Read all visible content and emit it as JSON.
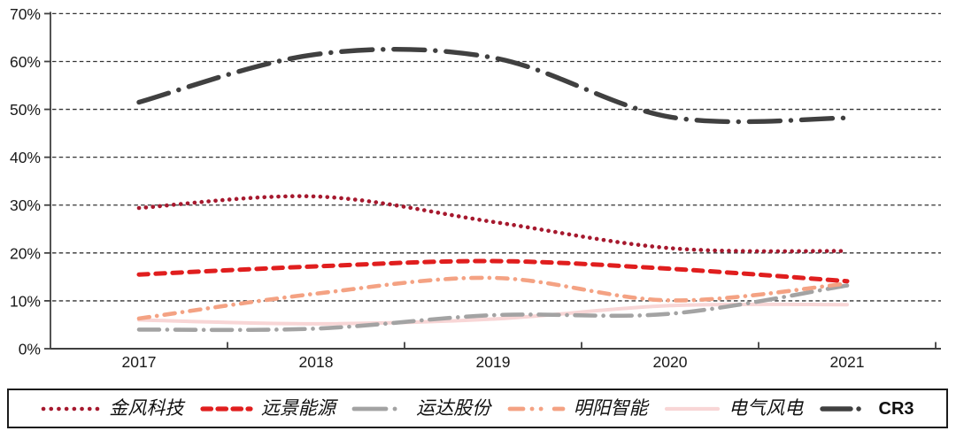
{
  "chart_data": {
    "type": "line",
    "title": "",
    "categories": [
      "2017",
      "2018",
      "2019",
      "2020",
      "2021"
    ],
    "y_axis": {
      "ticks": [
        {
          "label": "0%",
          "value": 0
        },
        {
          "label": "10%",
          "value": 10
        },
        {
          "label": "20%",
          "value": 20
        },
        {
          "label": "30%",
          "value": 30
        },
        {
          "label": "40%",
          "value": 40
        },
        {
          "label": "50%",
          "value": 50
        },
        {
          "label": "60%",
          "value": 60
        },
        {
          "label": "70%",
          "value": 70
        }
      ]
    },
    "ylim": [
      0,
      70
    ],
    "grid": "horizontal-dashed",
    "legend_position": "bottom",
    "series": [
      {
        "key": "goldwind",
        "name": "金风科技",
        "style": "dotted",
        "color": "#A6192E",
        "values": [
          29.4,
          31.8,
          26.5,
          21.0,
          20.4
        ]
      },
      {
        "key": "envision",
        "name": "远景能源",
        "style": "dashed",
        "color": "#E01E1E",
        "values": [
          15.5,
          17.2,
          18.3,
          16.7,
          14.1
        ]
      },
      {
        "key": "windey",
        "name": "运达股份",
        "style": "long-dash-dot",
        "color": "#A3A3A3",
        "values": [
          4.0,
          4.2,
          7.0,
          7.3,
          13.2
        ]
      },
      {
        "key": "mingyang",
        "name": "明阳智能",
        "style": "dash-dot",
        "color": "#F4A283",
        "values": [
          6.3,
          11.5,
          14.8,
          10.1,
          13.6
        ]
      },
      {
        "key": "shanghai-electric",
        "name": "电气风电",
        "style": "solid",
        "color": "#F8D6D6",
        "values": [
          6.0,
          5.2,
          6.2,
          9.0,
          9.2
        ]
      },
      {
        "key": "cr3",
        "name": "CR3",
        "style": "xlong-dash-dot",
        "color": "#404040",
        "values": [
          51.5,
          61.5,
          60.8,
          48.4,
          48.2
        ]
      }
    ],
    "draw_order": [
      4,
      2,
      3,
      1,
      0,
      5
    ],
    "axis_color": "#404040",
    "gridline_color": "#333333"
  }
}
